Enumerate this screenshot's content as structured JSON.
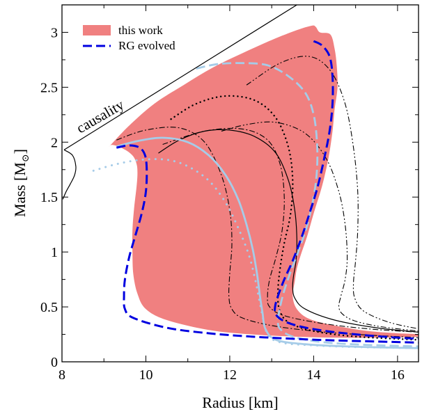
{
  "chart_data": {
    "type": "line",
    "title": "",
    "xlabel": "Radius [km]",
    "ylabel": "Mass [M",
    "ylabel_sub": "⊙",
    "ylabel_close": "]",
    "xlim": [
      8,
      16.5
    ],
    "ylim": [
      0,
      3.25
    ],
    "xticks": [
      8,
      10,
      12,
      14,
      16
    ],
    "yticks": [
      0,
      0.5,
      1,
      1.5,
      2,
      2.5,
      3
    ],
    "xtick_labels": [
      "8",
      "10",
      "12",
      "14",
      "16"
    ],
    "ytick_labels": [
      "0",
      "0.5",
      "1",
      "1.5",
      "2",
      "2.5",
      "3"
    ],
    "grid": false,
    "legend": {
      "position": "top-left",
      "entries": [
        "this work",
        "RG evolved"
      ]
    },
    "annotation": "causality",
    "colors": {
      "band": "#f08080",
      "rg": "#0000e0",
      "light": "#a6cce8",
      "black": "#000000"
    },
    "band": {
      "name": "this work",
      "x": [
        9.15,
        9.6,
        10.2,
        10.9,
        11.6,
        12.3,
        13.0,
        13.6,
        13.95,
        14.05,
        14.15,
        14.4,
        14.5,
        14.55,
        14.57,
        14.5,
        14.45,
        14.35,
        14.2,
        14.0,
        13.85,
        13.7,
        13.6,
        13.55,
        13.5,
        13.6,
        13.9,
        14.5,
        15.3,
        16.0,
        16.5,
        16.5,
        15.5,
        14.5,
        13.5,
        12.5,
        11.5,
        10.5,
        10.0,
        9.8,
        9.7,
        9.68,
        9.68,
        9.72,
        9.78,
        9.8,
        9.78,
        9.7,
        9.55,
        9.35,
        9.2,
        9.15
      ],
      "y": [
        1.97,
        2.15,
        2.35,
        2.52,
        2.68,
        2.81,
        2.93,
        3.02,
        3.06,
        3.05,
        3.0,
        2.98,
        2.85,
        2.7,
        2.5,
        2.3,
        2.1,
        1.85,
        1.6,
        1.35,
        1.15,
        0.98,
        0.85,
        0.73,
        0.6,
        0.48,
        0.39,
        0.33,
        0.28,
        0.26,
        0.25,
        0.23,
        0.22,
        0.22,
        0.23,
        0.25,
        0.29,
        0.38,
        0.48,
        0.62,
        0.8,
        1.0,
        1.2,
        1.4,
        1.6,
        1.72,
        1.8,
        1.87,
        1.92,
        1.96,
        1.975,
        1.97
      ]
    },
    "causality": {
      "x": [
        8.05,
        13.6
      ],
      "y": [
        1.93,
        3.25
      ]
    },
    "causality_branch": {
      "x": [
        8.05,
        8.25,
        8.33,
        8.3,
        8.2,
        8.1,
        8.02
      ],
      "y": [
        1.93,
        1.88,
        1.78,
        1.7,
        1.62,
        1.55,
        1.48
      ]
    },
    "series": [
      {
        "name": "RG evolved",
        "style": "rg-dashed",
        "x": [
          9.3,
          9.6,
          9.85,
          9.98,
          10.02,
          10.0,
          9.9,
          9.75,
          9.6,
          9.5,
          9.48,
          9.5,
          9.7,
          10.5,
          11.5,
          12.5,
          13.5,
          14.5,
          15.5,
          16.5
        ],
        "y": [
          1.95,
          1.97,
          1.95,
          1.88,
          1.75,
          1.55,
          1.35,
          1.15,
          0.95,
          0.75,
          0.6,
          0.48,
          0.4,
          0.31,
          0.26,
          0.23,
          0.21,
          0.195,
          0.185,
          0.175
        ]
      },
      {
        "name": "",
        "style": "rg-dashed",
        "x": [
          14.0,
          14.2,
          14.38,
          14.45,
          14.45,
          14.38,
          14.25,
          14.1,
          13.9,
          13.7,
          13.5,
          13.3,
          13.15,
          13.08,
          13.1,
          13.3,
          13.7,
          14.3,
          15.0,
          15.8,
          16.5
        ],
        "y": [
          2.92,
          2.88,
          2.78,
          2.6,
          2.35,
          2.1,
          1.85,
          1.6,
          1.35,
          1.12,
          0.92,
          0.75,
          0.6,
          0.5,
          0.43,
          0.37,
          0.32,
          0.28,
          0.25,
          0.225,
          0.21
        ]
      },
      {
        "name": "",
        "style": "light-solid",
        "x": [
          9.3,
          9.8,
          10.4,
          11.0,
          11.5,
          11.9,
          12.2,
          12.4,
          12.55,
          12.65,
          12.72,
          12.78,
          12.85,
          13.1,
          13.8,
          14.8,
          15.8,
          16.5
        ],
        "y": [
          1.96,
          2.01,
          2.04,
          2.0,
          1.88,
          1.7,
          1.48,
          1.25,
          1.02,
          0.8,
          0.6,
          0.45,
          0.3,
          0.2,
          0.16,
          0.14,
          0.13,
          0.125
        ]
      },
      {
        "name": "",
        "style": "light-dashed",
        "x": [
          11.2,
          11.7,
          12.3,
          12.9,
          13.4,
          13.8,
          14.0,
          14.08,
          14.08,
          14.0,
          13.85,
          13.65,
          13.45,
          13.3,
          13.2,
          13.15,
          13.2,
          13.5,
          14.2,
          15.2,
          16.5
        ],
        "y": [
          2.67,
          2.71,
          2.72,
          2.7,
          2.6,
          2.45,
          2.25,
          2.0,
          1.75,
          1.5,
          1.25,
          1.02,
          0.82,
          0.65,
          0.5,
          0.38,
          0.3,
          0.23,
          0.18,
          0.155,
          0.14
        ]
      },
      {
        "name": "",
        "style": "light-dotted",
        "x": [
          8.75,
          9.3,
          9.9,
          10.5,
          11.0,
          11.5,
          11.9,
          12.2,
          12.45,
          12.6,
          12.7,
          12.78,
          12.85,
          12.95,
          13.3,
          14.0,
          15.0,
          16.5
        ],
        "y": [
          1.74,
          1.8,
          1.84,
          1.84,
          1.78,
          1.65,
          1.45,
          1.22,
          0.98,
          0.76,
          0.57,
          0.42,
          0.3,
          0.22,
          0.17,
          0.15,
          0.135,
          0.125
        ]
      },
      {
        "name": "",
        "style": "black-solid",
        "x": [
          10.3,
          10.8,
          11.4,
          12.0,
          12.6,
          13.1,
          13.4,
          13.55,
          13.6,
          13.58,
          13.52,
          13.5,
          13.55,
          13.8,
          14.5,
          15.5,
          16.5
        ],
        "y": [
          1.9,
          2.02,
          2.1,
          2.11,
          2.05,
          1.9,
          1.65,
          1.38,
          1.12,
          0.92,
          0.78,
          0.68,
          0.58,
          0.48,
          0.38,
          0.31,
          0.27
        ]
      },
      {
        "name": "",
        "style": "black-dotted",
        "x": [
          10.6,
          11.2,
          11.9,
          12.6,
          13.1,
          13.4,
          13.5,
          13.45,
          13.3,
          13.2,
          13.15,
          13.18,
          13.4,
          14.0,
          15.0,
          16.5
        ],
        "y": [
          2.21,
          2.35,
          2.42,
          2.38,
          2.22,
          1.95,
          1.65,
          1.35,
          1.08,
          0.85,
          0.65,
          0.48,
          0.36,
          0.28,
          0.23,
          0.2
        ]
      },
      {
        "name": "",
        "style": "black-dashdot",
        "x": [
          9.3,
          10.0,
          10.8,
          11.4,
          11.8,
          12.0,
          12.05,
          12.0,
          11.98,
          12.05,
          12.3,
          13.0,
          14.0,
          15.0,
          16.5
        ],
        "y": [
          2.02,
          2.11,
          2.13,
          2.0,
          1.7,
          1.38,
          1.08,
          0.8,
          0.6,
          0.48,
          0.4,
          0.33,
          0.28,
          0.25,
          0.22
        ]
      },
      {
        "name": "",
        "style": "black-dashdot",
        "x": [
          10.4,
          11.4,
          12.3,
          12.9,
          13.2,
          13.3,
          13.25,
          13.1,
          12.95,
          12.9,
          12.95,
          13.3,
          14.2,
          15.3,
          16.5
        ],
        "y": [
          1.98,
          2.1,
          2.12,
          2.02,
          1.8,
          1.5,
          1.2,
          0.95,
          0.75,
          0.6,
          0.5,
          0.42,
          0.35,
          0.3,
          0.27
        ]
      },
      {
        "name": "",
        "style": "black-dashdotdot",
        "x": [
          11.8,
          12.4,
          13.1,
          13.8,
          14.3,
          14.6,
          14.75,
          14.8,
          14.75,
          14.65,
          14.6,
          14.7,
          15.0,
          15.6,
          16.5
        ],
        "y": [
          2.1,
          2.16,
          2.18,
          2.08,
          1.85,
          1.55,
          1.25,
          0.95,
          0.75,
          0.6,
          0.5,
          0.43,
          0.37,
          0.32,
          0.28
        ]
      },
      {
        "name": "",
        "style": "black-dashdotdot",
        "x": [
          12.4,
          13.2,
          13.9,
          14.4,
          14.75,
          14.95,
          15.05,
          15.05,
          15.0,
          14.95,
          14.98,
          15.2,
          15.8,
          16.5
        ],
        "y": [
          2.52,
          2.72,
          2.78,
          2.65,
          2.35,
          1.95,
          1.55,
          1.2,
          0.92,
          0.72,
          0.58,
          0.46,
          0.36,
          0.3
        ]
      }
    ]
  }
}
